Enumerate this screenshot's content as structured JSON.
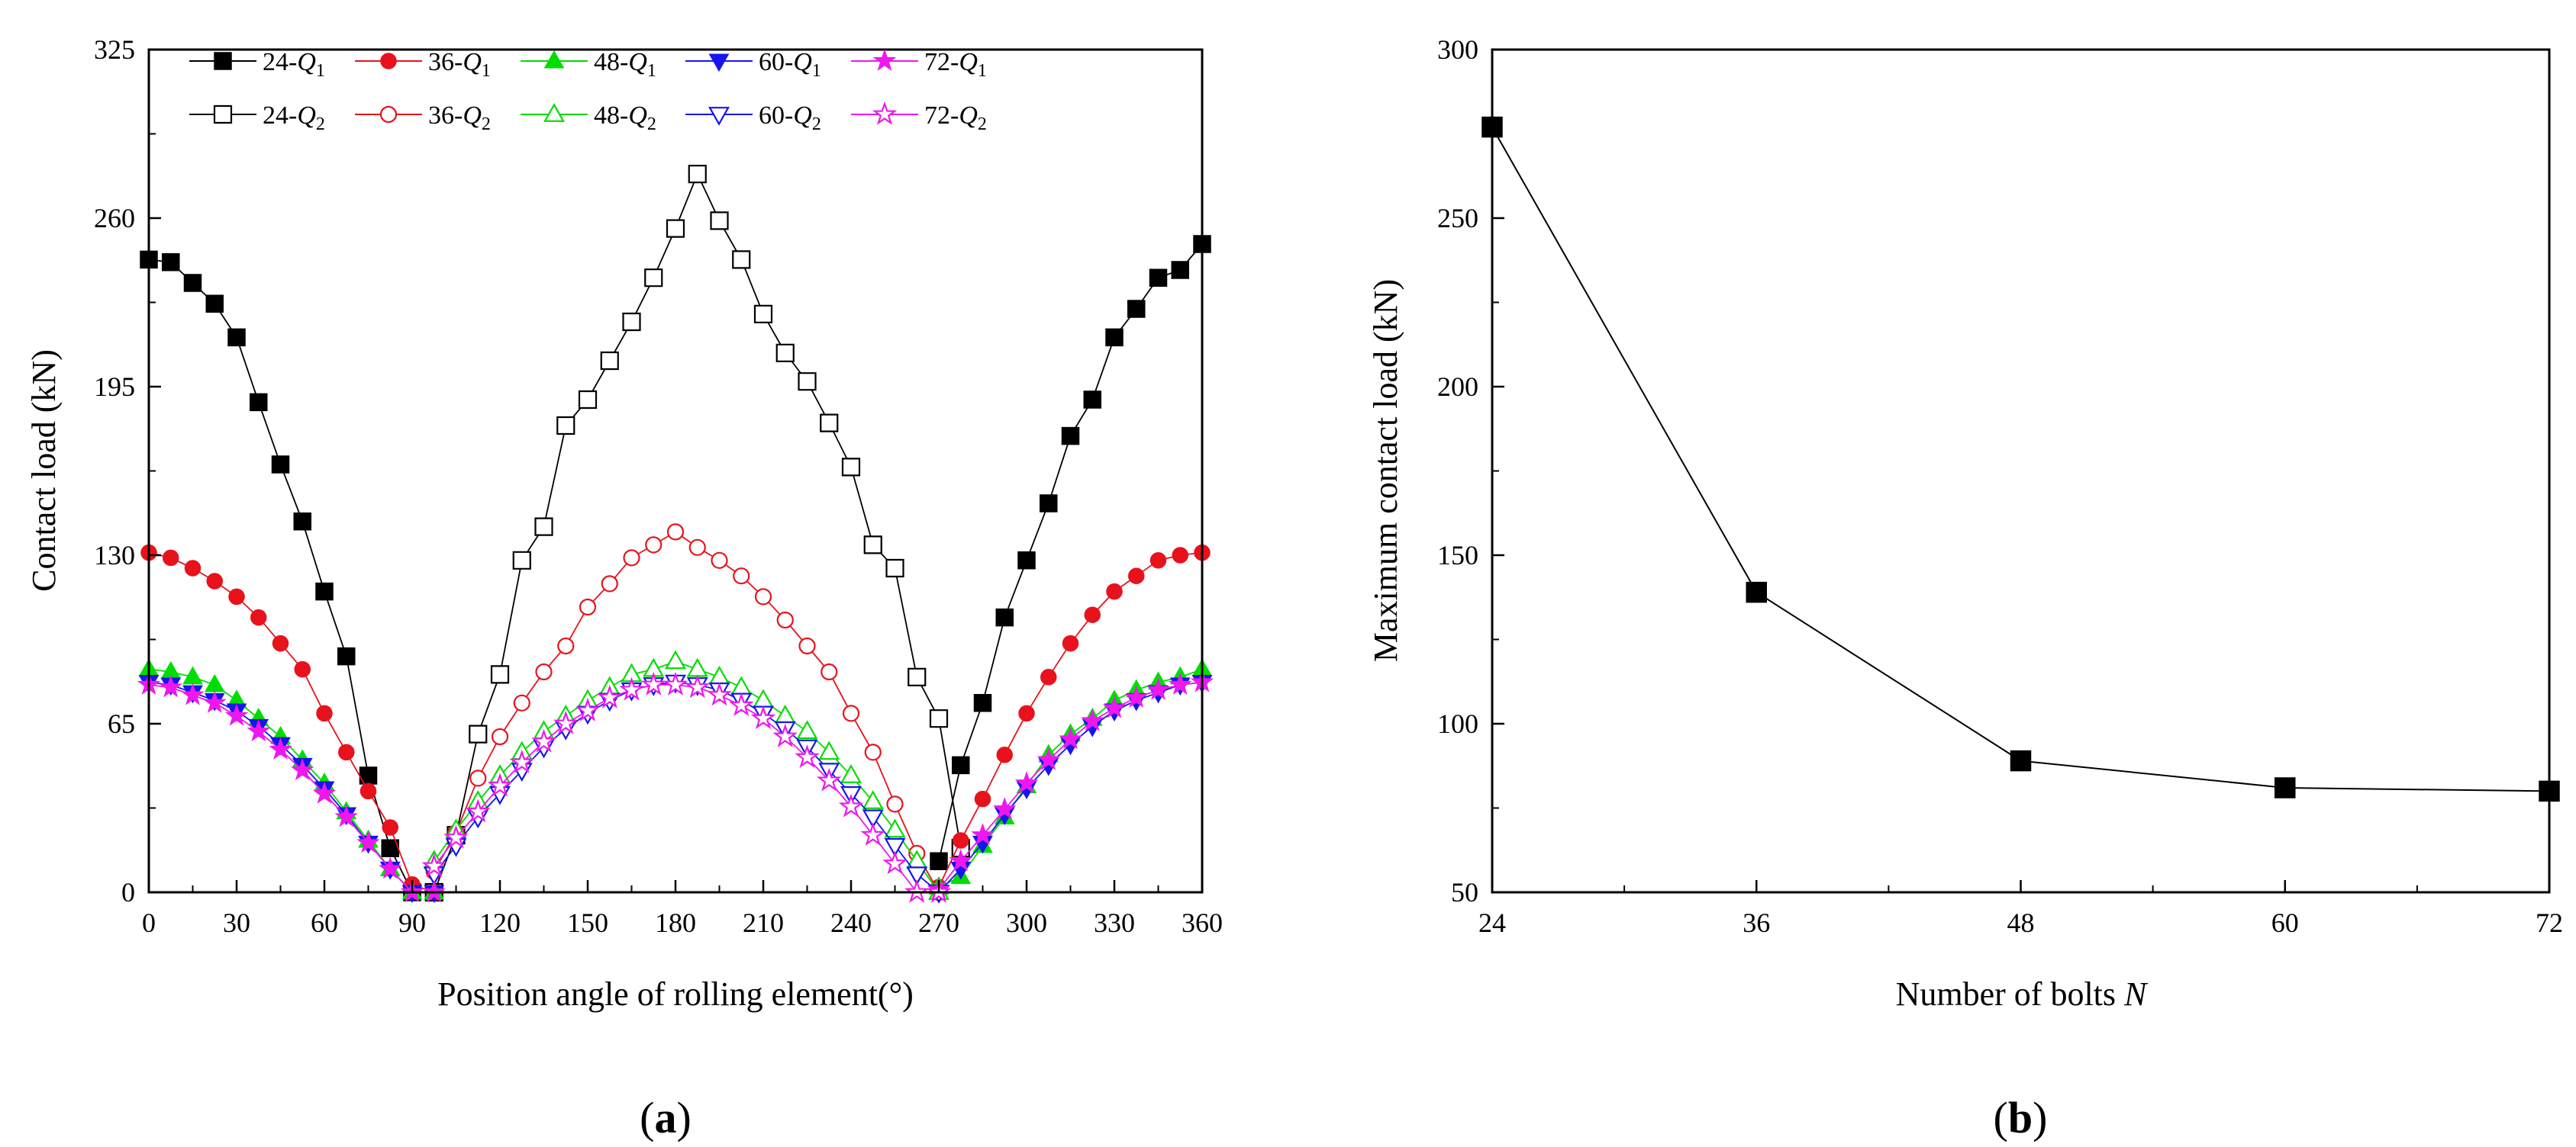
{
  "figure": {
    "panel_a_label": {
      "open": "(",
      "letter": "a",
      "close": ")"
    },
    "panel_b_label": {
      "open": "(",
      "letter": "b",
      "close": ")"
    }
  },
  "chart_data": [
    {
      "type": "line",
      "panel": "a",
      "title": "",
      "xlabel": "Position angle of rolling element(°)",
      "ylabel": "Contact load (kN)",
      "xlim": [
        0,
        360
      ],
      "ylim": [
        0,
        325
      ],
      "xticks": [
        "0",
        "30",
        "60",
        "90",
        "120",
        "150",
        "180",
        "210",
        "240",
        "270",
        "300",
        "330",
        "360"
      ],
      "yticks": [
        "0",
        "65",
        "130",
        "195",
        "260",
        "325"
      ],
      "legend_position": "top",
      "x_step": 7.5,
      "series": [
        {
          "name": "24-Q1",
          "legend": {
            "prefix": "24-",
            "var": "Q",
            "sub": "1"
          },
          "color": "#000000",
          "marker": "square",
          "filled": true,
          "x_start": 0,
          "values": [
            244,
            243,
            235,
            227,
            214,
            189,
            165,
            143,
            116,
            91,
            45,
            17,
            0,
            0
          ]
        },
        {
          "name": "24-Q1",
          "legend": null,
          "color": "#000000",
          "marker": "square",
          "filled": true,
          "x_start": 270,
          "values": [
            12,
            49,
            73,
            106,
            128,
            150,
            176,
            190,
            214,
            225,
            237,
            240,
            250
          ]
        },
        {
          "name": "24-Q2",
          "legend": {
            "prefix": "24-",
            "var": "Q",
            "sub": "2"
          },
          "color": "#000000",
          "marker": "square",
          "filled": false,
          "x_start": 97.5,
          "values": [
            0,
            22,
            61,
            84,
            128,
            141,
            180,
            190,
            205,
            220,
            237,
            256,
            277,
            259,
            244,
            223,
            208,
            197,
            181,
            164,
            134,
            125,
            83,
            67,
            17
          ]
        },
        {
          "name": "36-Q1",
          "legend": {
            "prefix": "36-",
            "var": "Q",
            "sub": "1"
          },
          "color": "#e8121c",
          "marker": "circle",
          "filled": true,
          "x_start": 0,
          "values": [
            131,
            129,
            125,
            120,
            114,
            106,
            96,
            86,
            69,
            54,
            39,
            25,
            3,
            0
          ]
        },
        {
          "name": "36-Q1",
          "legend": null,
          "color": "#e8121c",
          "marker": "circle",
          "filled": true,
          "x_start": 270,
          "values": [
            2,
            20,
            36,
            53,
            69,
            83,
            96,
            107,
            116,
            122,
            128,
            130,
            131
          ]
        },
        {
          "name": "36-Q2",
          "legend": {
            "prefix": "36-",
            "var": "Q",
            "sub": "2"
          },
          "color": "#e8121c",
          "marker": "circle",
          "filled": false,
          "x_start": 97.5,
          "values": [
            8,
            23,
            44,
            60,
            73,
            85,
            95,
            110,
            119,
            129,
            134,
            139,
            133,
            128,
            122,
            114,
            105,
            95,
            85,
            69,
            54,
            34,
            15,
            0
          ]
        },
        {
          "name": "48-Q1",
          "legend": {
            "prefix": "48-",
            "var": "Q",
            "sub": "1"
          },
          "color": "#00dd00",
          "marker": "triangle-up",
          "filled": true,
          "x_start": 0,
          "values": [
            86,
            85,
            83,
            80,
            74,
            67,
            60,
            51,
            42,
            31,
            20,
            9,
            0,
            0
          ]
        },
        {
          "name": "48-Q1",
          "legend": null,
          "color": "#00dd00",
          "marker": "triangle-up",
          "filled": true,
          "x_start": 270,
          "values": [
            2,
            6,
            18,
            29,
            41,
            53,
            61,
            67,
            74,
            78,
            81,
            83,
            86
          ]
        },
        {
          "name": "48-Q2",
          "legend": {
            "prefix": "48-",
            "var": "Q",
            "sub": "2"
          },
          "color": "#00dd00",
          "marker": "triangle-up",
          "filled": false,
          "x_start": 97.5,
          "values": [
            12,
            24,
            35,
            45,
            54,
            62,
            68,
            74,
            79,
            84,
            86,
            89,
            86,
            83,
            79,
            74,
            68,
            62,
            54,
            45,
            35,
            24,
            12,
            0
          ]
        },
        {
          "name": "60-Q1",
          "legend": {
            "prefix": "60-",
            "var": "Q",
            "sub": "1"
          },
          "color": "#1515ee",
          "marker": "triangle-down",
          "filled": true,
          "x_start": 0,
          "values": [
            81,
            80,
            77,
            74,
            70,
            64,
            57,
            49,
            40,
            30,
            19,
            9,
            0,
            0
          ]
        },
        {
          "name": "60-Q1",
          "legend": null,
          "color": "#1515ee",
          "marker": "triangle-down",
          "filled": true,
          "x_start": 270,
          "values": [
            0,
            9,
            19,
            30,
            40,
            49,
            57,
            64,
            70,
            74,
            77,
            80,
            81
          ]
        },
        {
          "name": "60-Q2",
          "legend": {
            "prefix": "60-",
            "var": "Q",
            "sub": "2"
          },
          "color": "#1515ee",
          "marker": "triangle-down",
          "filled": false,
          "x_start": 97.5,
          "values": [
            7,
            18,
            29,
            38,
            47,
            56,
            63,
            69,
            74,
            78,
            80,
            81,
            80,
            78,
            74,
            69,
            63,
            56,
            47,
            38,
            29,
            18,
            7,
            0
          ]
        },
        {
          "name": "72-Q1",
          "legend": {
            "prefix": "72-",
            "var": "Q",
            "sub": "1"
          },
          "color": "#ee18ee",
          "marker": "star",
          "filled": true,
          "x_start": 0,
          "values": [
            80,
            79,
            76,
            73,
            68,
            62,
            55,
            47,
            38,
            29,
            19,
            9,
            0,
            0
          ]
        },
        {
          "name": "72-Q1",
          "legend": null,
          "color": "#ee18ee",
          "marker": "star",
          "filled": true,
          "x_start": 270,
          "values": [
            1,
            12,
            22,
            32,
            42,
            51,
            59,
            66,
            71,
            75,
            78,
            80,
            81
          ]
        },
        {
          "name": "72-Q2",
          "legend": {
            "prefix": "72-",
            "var": "Q",
            "sub": "2"
          },
          "color": "#ee18ee",
          "marker": "star",
          "filled": false,
          "x_start": 97.5,
          "values": [
            10,
            21,
            31,
            41,
            50,
            58,
            65,
            70,
            75,
            78,
            80,
            80,
            79,
            76,
            72,
            67,
            60,
            52,
            43,
            33,
            22,
            11,
            0,
            0
          ]
        }
      ]
    },
    {
      "type": "line",
      "panel": "b",
      "title": "",
      "xlabel": "Number of bolts",
      "xlabel_var": "N",
      "ylabel": "Maximum contact load (kN)",
      "xlim": [
        24,
        72
      ],
      "ylim": [
        50,
        300
      ],
      "xticks": [
        "24",
        "36",
        "48",
        "60",
        "72"
      ],
      "yticks": [
        "50",
        "100",
        "150",
        "200",
        "250",
        "300"
      ],
      "series": [
        {
          "name": "Maximum contact load",
          "color": "#000000",
          "marker": "square",
          "filled": true,
          "x": [
            24,
            36,
            48,
            60,
            72
          ],
          "values": [
            277,
            139,
            89,
            81,
            80
          ]
        }
      ]
    }
  ]
}
